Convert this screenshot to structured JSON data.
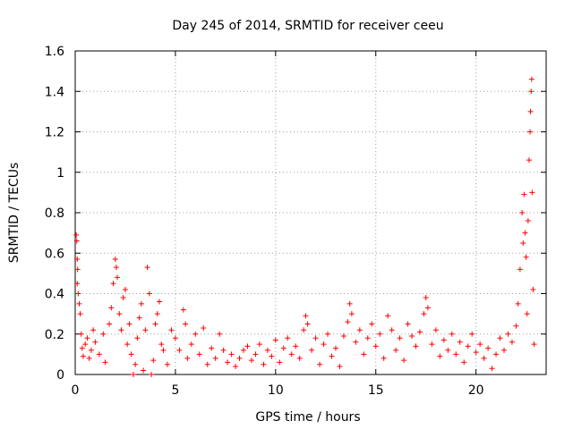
{
  "chart_data": {
    "type": "scatter",
    "title": "Day 245 of 2014, SRMTID for receiver ceeu",
    "xlabel": "GPS time / hours",
    "ylabel": "SRMTID / TECUs",
    "xlim": [
      0,
      23.5
    ],
    "ylim": [
      0,
      1.6
    ],
    "xticks": [
      0,
      5,
      10,
      15,
      20
    ],
    "xtick_labels": [
      "0",
      "5",
      "10",
      "15",
      "20"
    ],
    "yticks": [
      0,
      0.2,
      0.4,
      0.6,
      0.8,
      1,
      1.2,
      1.4,
      1.6
    ],
    "ytick_labels": [
      "0",
      "0.2",
      "0.4",
      "0.6",
      "0.8",
      "1",
      "1.2",
      "1.4",
      "1.6"
    ],
    "grid": true,
    "marker": "plus",
    "marker_color": "#ff0000",
    "series": [
      {
        "name": "SRMTID",
        "points": [
          [
            0.05,
            0.69
          ],
          [
            0.08,
            0.66
          ],
          [
            0.1,
            0.57
          ],
          [
            0.12,
            0.52
          ],
          [
            0.1,
            0.45
          ],
          [
            0.15,
            0.4
          ],
          [
            0.2,
            0.35
          ],
          [
            0.25,
            0.3
          ],
          [
            0.3,
            0.2
          ],
          [
            0.35,
            0.13
          ],
          [
            0.4,
            0.09
          ],
          [
            0.5,
            0.15
          ],
          [
            0.6,
            0.18
          ],
          [
            0.7,
            0.08
          ],
          [
            0.8,
            0.12
          ],
          [
            0.9,
            0.22
          ],
          [
            1.0,
            0.16
          ],
          [
            1.2,
            0.1
          ],
          [
            1.4,
            0.2
          ],
          [
            1.5,
            0.06
          ],
          [
            1.7,
            0.25
          ],
          [
            1.8,
            0.33
          ],
          [
            1.9,
            0.45
          ],
          [
            2.0,
            0.57
          ],
          [
            2.05,
            0.53
          ],
          [
            2.1,
            0.48
          ],
          [
            2.2,
            0.3
          ],
          [
            2.3,
            0.22
          ],
          [
            2.4,
            0.38
          ],
          [
            2.5,
            0.42
          ],
          [
            2.6,
            0.15
          ],
          [
            2.7,
            0.25
          ],
          [
            2.8,
            0.1
          ],
          [
            2.9,
            0.0
          ],
          [
            3.0,
            0.05
          ],
          [
            3.1,
            0.18
          ],
          [
            3.2,
            0.28
          ],
          [
            3.3,
            0.35
          ],
          [
            3.4,
            0.02
          ],
          [
            3.5,
            0.22
          ],
          [
            3.6,
            0.53
          ],
          [
            3.7,
            0.4
          ],
          [
            3.8,
            0.0
          ],
          [
            3.9,
            0.07
          ],
          [
            4.0,
            0.25
          ],
          [
            4.1,
            0.3
          ],
          [
            4.2,
            0.36
          ],
          [
            4.3,
            0.15
          ],
          [
            4.4,
            0.12
          ],
          [
            4.6,
            0.05
          ],
          [
            4.8,
            0.22
          ],
          [
            5.0,
            0.18
          ],
          [
            5.2,
            0.12
          ],
          [
            5.4,
            0.32
          ],
          [
            5.5,
            0.25
          ],
          [
            5.6,
            0.08
          ],
          [
            5.8,
            0.15
          ],
          [
            6.0,
            0.2
          ],
          [
            6.2,
            0.1
          ],
          [
            6.4,
            0.23
          ],
          [
            6.6,
            0.05
          ],
          [
            6.8,
            0.13
          ],
          [
            7.0,
            0.08
          ],
          [
            7.2,
            0.2
          ],
          [
            7.4,
            0.12
          ],
          [
            7.6,
            0.06
          ],
          [
            7.8,
            0.1
          ],
          [
            8.0,
            0.04
          ],
          [
            8.2,
            0.08
          ],
          [
            8.4,
            0.12
          ],
          [
            8.6,
            0.14
          ],
          [
            8.8,
            0.07
          ],
          [
            9.0,
            0.1
          ],
          [
            9.2,
            0.15
          ],
          [
            9.4,
            0.05
          ],
          [
            9.6,
            0.12
          ],
          [
            9.8,
            0.09
          ],
          [
            10.0,
            0.17
          ],
          [
            10.2,
            0.06
          ],
          [
            10.4,
            0.13
          ],
          [
            10.6,
            0.18
          ],
          [
            10.8,
            0.1
          ],
          [
            11.0,
            0.14
          ],
          [
            11.2,
            0.08
          ],
          [
            11.4,
            0.22
          ],
          [
            11.5,
            0.29
          ],
          [
            11.6,
            0.25
          ],
          [
            11.8,
            0.12
          ],
          [
            12.0,
            0.18
          ],
          [
            12.2,
            0.05
          ],
          [
            12.4,
            0.15
          ],
          [
            12.6,
            0.2
          ],
          [
            12.8,
            0.09
          ],
          [
            13.0,
            0.13
          ],
          [
            13.2,
            0.04
          ],
          [
            13.4,
            0.19
          ],
          [
            13.6,
            0.26
          ],
          [
            13.7,
            0.35
          ],
          [
            13.8,
            0.3
          ],
          [
            14.0,
            0.16
          ],
          [
            14.2,
            0.22
          ],
          [
            14.4,
            0.1
          ],
          [
            14.6,
            0.18
          ],
          [
            14.8,
            0.25
          ],
          [
            15.0,
            0.14
          ],
          [
            15.2,
            0.2
          ],
          [
            15.4,
            0.08
          ],
          [
            15.6,
            0.29
          ],
          [
            15.8,
            0.22
          ],
          [
            16.0,
            0.12
          ],
          [
            16.2,
            0.18
          ],
          [
            16.4,
            0.07
          ],
          [
            16.6,
            0.25
          ],
          [
            16.8,
            0.19
          ],
          [
            17.0,
            0.14
          ],
          [
            17.2,
            0.21
          ],
          [
            17.4,
            0.3
          ],
          [
            17.5,
            0.38
          ],
          [
            17.6,
            0.33
          ],
          [
            17.8,
            0.15
          ],
          [
            18.0,
            0.22
          ],
          [
            18.2,
            0.09
          ],
          [
            18.4,
            0.17
          ],
          [
            18.6,
            0.12
          ],
          [
            18.8,
            0.2
          ],
          [
            19.0,
            0.1
          ],
          [
            19.2,
            0.16
          ],
          [
            19.4,
            0.06
          ],
          [
            19.6,
            0.14
          ],
          [
            19.8,
            0.2
          ],
          [
            20.0,
            0.11
          ],
          [
            20.2,
            0.15
          ],
          [
            20.4,
            0.08
          ],
          [
            20.6,
            0.13
          ],
          [
            20.8,
            0.03
          ],
          [
            21.0,
            0.1
          ],
          [
            21.2,
            0.18
          ],
          [
            21.4,
            0.12
          ],
          [
            21.6,
            0.2
          ],
          [
            21.8,
            0.16
          ],
          [
            22.0,
            0.24
          ],
          [
            22.1,
            0.35
          ],
          [
            22.2,
            0.52
          ],
          [
            22.3,
            0.8
          ],
          [
            22.35,
            0.65
          ],
          [
            22.4,
            0.89
          ],
          [
            22.45,
            0.7
          ],
          [
            22.5,
            0.58
          ],
          [
            22.55,
            0.3
          ],
          [
            22.6,
            0.76
          ],
          [
            22.65,
            1.06
          ],
          [
            22.7,
            1.2
          ],
          [
            22.72,
            1.3
          ],
          [
            22.75,
            1.4
          ],
          [
            22.78,
            1.46
          ],
          [
            22.8,
            0.9
          ],
          [
            22.85,
            0.42
          ],
          [
            22.9,
            0.15
          ]
        ]
      }
    ]
  }
}
